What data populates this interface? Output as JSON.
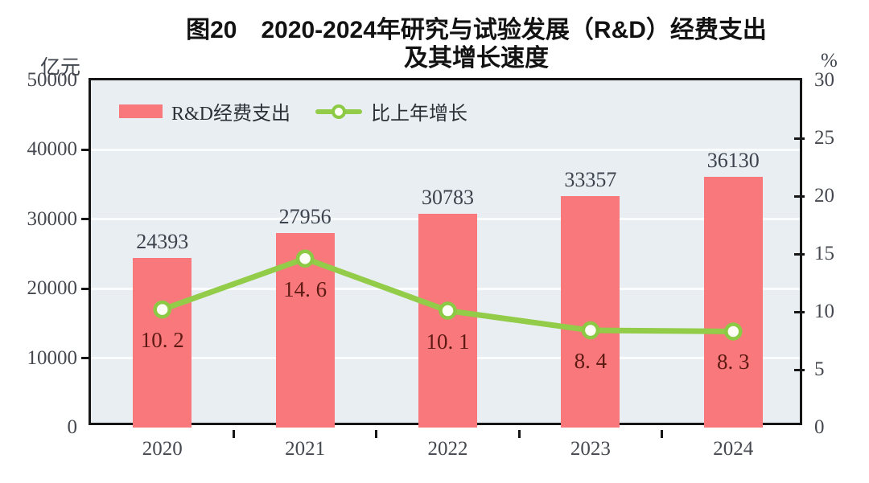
{
  "title": {
    "line1": "图20　2020-2024年研究与试验发展（R&D）经费支出",
    "line2": "及其增长速度"
  },
  "axes": {
    "left_unit": "亿元",
    "right_unit": "%",
    "left_ticks": [
      0,
      10000,
      20000,
      30000,
      40000,
      50000
    ],
    "right_ticks": [
      0,
      5,
      10,
      15,
      20,
      25,
      30
    ]
  },
  "legend": [
    {
      "label": "R&D经费支出",
      "type": "bar",
      "color": "#f8787c"
    },
    {
      "label": "比上年增长",
      "type": "line",
      "color": "#92cc48"
    }
  ],
  "colors": {
    "bar": "#f8787c",
    "line": "#92cc48",
    "marker_fill": "#fdfef6",
    "marker_stroke": "#8cc944",
    "plot_background": "#e9eef2",
    "gridline": "#fbfcfd",
    "growth_label": "#5c1a12",
    "value_label": "#3c434d"
  },
  "chart_data": {
    "type": "bar+line",
    "title": "图20 2020-2024年研究与试验发展（R&D）经费支出及其增长速度",
    "categories": [
      "2020",
      "2021",
      "2022",
      "2023",
      "2024"
    ],
    "series": [
      {
        "name": "R&D经费支出",
        "type": "bar",
        "axis": "left",
        "unit": "亿元",
        "values": [
          24393,
          27956,
          30783,
          33357,
          36130
        ],
        "color": "#f8787c"
      },
      {
        "name": "比上年增长",
        "type": "line",
        "axis": "right",
        "unit": "%",
        "values": [
          10.2,
          14.6,
          10.1,
          8.4,
          8.3
        ],
        "color": "#92cc48"
      }
    ],
    "ylabel_left": "亿元",
    "ylabel_right": "%",
    "ylim_left": [
      0,
      50000
    ],
    "ylim_right": [
      0,
      30
    ],
    "grid": true,
    "legend_position": "top-left"
  }
}
